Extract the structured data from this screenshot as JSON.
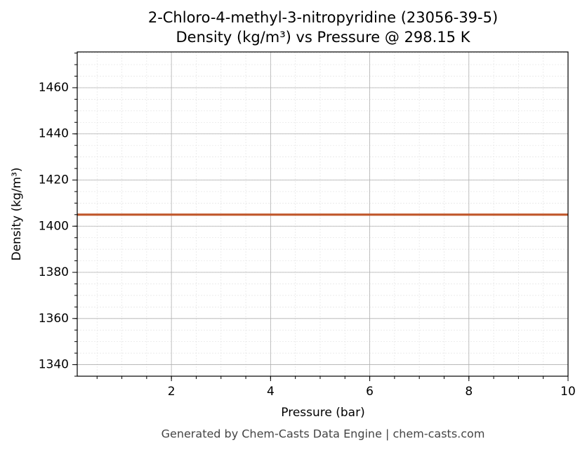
{
  "chart_data": {
    "type": "line",
    "title": "2-Chloro-4-methyl-3-nitropyridine (23056-39-5)",
    "subtitle": "Density (kg/m³) vs Pressure @ 298.15 K",
    "x_label": "Pressure (bar)",
    "y_label": "Density (kg/m³)",
    "footer": "Generated by Chem-Casts Data Engine | chem-casts.com",
    "x": [
      0.1,
      10
    ],
    "series": [
      {
        "name": "Density",
        "color": "#c0562a",
        "values": [
          1405,
          1405
        ]
      }
    ],
    "xlim": [
      0.1,
      10
    ],
    "xticks": [
      2,
      4,
      6,
      8,
      10
    ],
    "ylim": [
      1335,
      1475.5
    ],
    "yticks": [
      1340,
      1360,
      1380,
      1400,
      1420,
      1440,
      1460
    ],
    "grid": true
  }
}
